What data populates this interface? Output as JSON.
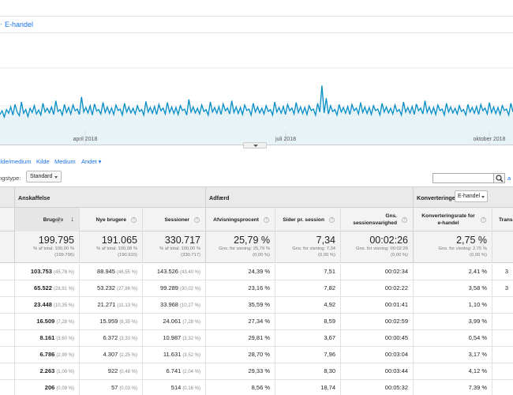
{
  "tabs": {
    "ecommerce": "E-handel"
  },
  "chart_data": {
    "type": "line",
    "x_labels": [
      "april 2018",
      "juli 2018",
      "oktober 2018"
    ],
    "grid": true,
    "fill_color": "#e8f3f8",
    "line_color": "#058dc7",
    "series": [
      {
        "values": [
          120,
          135,
          110,
          140,
          125,
          150,
          118,
          160,
          130,
          115,
          170,
          125,
          140,
          112,
          145,
          128,
          155,
          122,
          138,
          118,
          165,
          130,
          145,
          126,
          150,
          120,
          175,
          132,
          140,
          118,
          160,
          128,
          148,
          122,
          158,
          135,
          142,
          120,
          190,
          130,
          148,
          126,
          155,
          118,
          162,
          134,
          140,
          122,
          168,
          128,
          150,
          124,
          146,
          120,
          158,
          136,
          142,
          118,
          165,
          130,
          150,
          126,
          145,
          122,
          155,
          132,
          140,
          118,
          172,
          130,
          148,
          125,
          152,
          120,
          160,
          135,
          146,
          122,
          168,
          128,
          150,
          124,
          148,
          120,
          155,
          136,
          142,
          118,
          180,
          130,
          150,
          126,
          145,
          122,
          158,
          132,
          140,
          118,
          170,
          130,
          148,
          125,
          152,
          120,
          162,
          135,
          146,
          122,
          175,
          128,
          150,
          124,
          148,
          120,
          158,
          136,
          142,
          118,
          165,
          130,
          150,
          126,
          145,
          122,
          155,
          132,
          140,
          118,
          170,
          130,
          148,
          125,
          152,
          120,
          160,
          135,
          146,
          122,
          168,
          128,
          150,
          124,
          148,
          120,
          155,
          136,
          142,
          118,
          165,
          130,
          235,
          126,
          185,
          122,
          155,
          132,
          140,
          118,
          160,
          130,
          148,
          125,
          152,
          120,
          160,
          135,
          146,
          122,
          168,
          128,
          150,
          124,
          148,
          120,
          155,
          136,
          142,
          118,
          165,
          130,
          150,
          126,
          145,
          122,
          158,
          132,
          140,
          118,
          170,
          130,
          148,
          125,
          152,
          120,
          162,
          135,
          146,
          122,
          175,
          128,
          150,
          124,
          148,
          120,
          158,
          136,
          142,
          118,
          165,
          130,
          150,
          126,
          145,
          122,
          155,
          132,
          140,
          118,
          160,
          130,
          148,
          125,
          152,
          120,
          160,
          135,
          146,
          122,
          168,
          128,
          150,
          124,
          148,
          120,
          155,
          136,
          142,
          118,
          165,
          130
        ]
      }
    ]
  },
  "dimensions": [
    "Kilde/medium",
    "Kilde",
    "Medium",
    "Andet ▾"
  ],
  "sort": {
    "label": "Sorteringstype:",
    "value": "Standard"
  },
  "search": {
    "placeholder": ""
  },
  "groups": {
    "acquisition": "Anskaffelse",
    "behavior": "Adfærd",
    "conversions": "Konverteringer",
    "conv_select": "E-handel"
  },
  "headers": {
    "users": "Brugere",
    "new_users": "Nye brugere",
    "sessions": "Sessioner",
    "bounce": "Afvisningsprocent",
    "pages": "Sider pr. session",
    "duration": "Gns. sessionsvarighed",
    "conv_rate": "Konverteringsrate for e-handel",
    "transactions": "Transaktioner"
  },
  "totals": {
    "users": {
      "big": "199.795",
      "small": "% af total: 100,00 %\n(199.795)"
    },
    "new_users": {
      "big": "191.065",
      "small": "% af total: 100,08 %\n(190.915)"
    },
    "sessions": {
      "big": "330.717",
      "small": "% af total: 100,00 %\n(330.717)"
    },
    "bounce": {
      "big": "25,79 %",
      "small": "Gns. for visning: 25,79 %\n(0,00 %)"
    },
    "pages": {
      "big": "7,34",
      "small": "Gns. for visning: 7,34\n(0,00 %)"
    },
    "duration": {
      "big": "00:02:26",
      "small": "Gns. for visning: 00:02:26\n(0,00 %)"
    },
    "conv_rate": {
      "big": "2,75 %",
      "small": "Gns. for visning: 2,75 %\n(0,00 %)"
    }
  },
  "rows": [
    {
      "users": "103.753",
      "users_pct": "(45,78 %)",
      "new": "88.945",
      "new_pct": "(46,55 %)",
      "sess": "143.526",
      "sess_pct": "(43,40 %)",
      "bounce": "24,39 %",
      "pages": "7,51",
      "dur": "00:02:34",
      "conv": "2,41 %",
      "trans": "3"
    },
    {
      "users": "65.522",
      "users_pct": "(28,91 %)",
      "new": "53.232",
      "new_pct": "(27,86 %)",
      "sess": "99.289",
      "sess_pct": "(30,02 %)",
      "bounce": "23,16 %",
      "pages": "7,82",
      "dur": "00:02:22",
      "conv": "3,58 %",
      "trans": "3"
    },
    {
      "users": "23.448",
      "users_pct": "(10,35 %)",
      "new": "21.271",
      "new_pct": "(11,13 %)",
      "sess": "33.968",
      "sess_pct": "(10,27 %)",
      "bounce": "35,59 %",
      "pages": "4,92",
      "dur": "00:01:41",
      "conv": "1,10 %",
      "trans": ""
    },
    {
      "users": "16.509",
      "users_pct": "(7,28 %)",
      "new": "15.959",
      "new_pct": "(8,35 %)",
      "sess": "24.061",
      "sess_pct": "(7,28 %)",
      "bounce": "27,34 %",
      "pages": "8,59",
      "dur": "00:02:59",
      "conv": "3,99 %",
      "trans": ""
    },
    {
      "users": "8.161",
      "users_pct": "(3,60 %)",
      "new": "6.372",
      "new_pct": "(3,33 %)",
      "sess": "10.987",
      "sess_pct": "(3,32 %)",
      "bounce": "29,81 %",
      "pages": "3,67",
      "dur": "00:00:45",
      "conv": "0,54 %",
      "trans": ""
    },
    {
      "users": "6.786",
      "users_pct": "(2,99 %)",
      "new": "4.307",
      "new_pct": "(2,25 %)",
      "sess": "11.631",
      "sess_pct": "(3,52 %)",
      "bounce": "28,70 %",
      "pages": "7,96",
      "dur": "00:03:04",
      "conv": "3,17 %",
      "trans": ""
    },
    {
      "users": "2.263",
      "users_pct": "(1,00 %)",
      "new": "922",
      "new_pct": "(0,48 %)",
      "sess": "6.741",
      "sess_pct": "(2,04 %)",
      "bounce": "29,33 %",
      "pages": "8,30",
      "dur": "00:03:44",
      "conv": "4,12 %",
      "trans": ""
    },
    {
      "users": "206",
      "users_pct": "(0,09 %)",
      "new": "57",
      "new_pct": "(0,03 %)",
      "sess": "514",
      "sess_pct": "(0,16 %)",
      "bounce": "8,56 %",
      "pages": "18,74",
      "dur": "00:05:32",
      "conv": "7,39 %",
      "trans": ""
    }
  ]
}
